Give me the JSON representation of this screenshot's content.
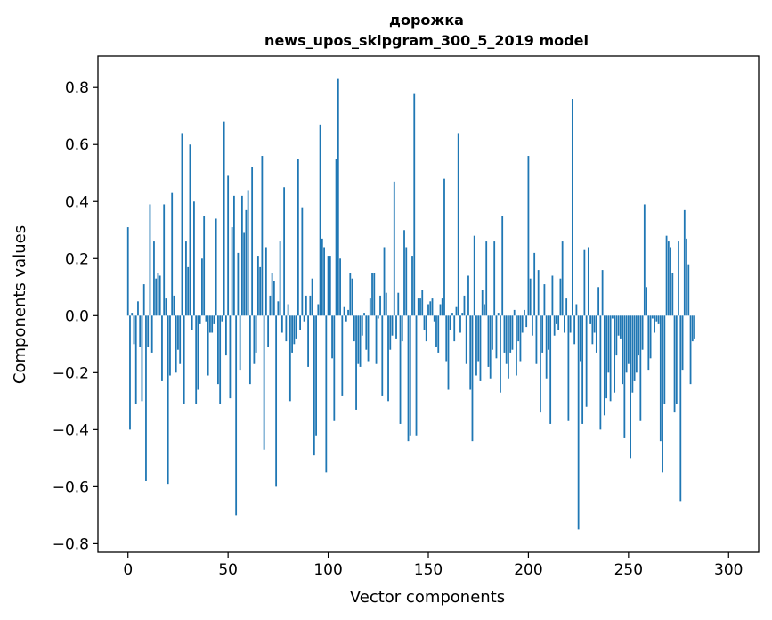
{
  "chart_data": {
    "type": "bar",
    "title": "дорожка",
    "subtitle": "news_upos_skipgram_300_5_2019 model",
    "xlabel": "Vector components",
    "ylabel": "Components values",
    "xlim": [
      -15,
      315
    ],
    "ylim": [
      -0.83,
      0.91
    ],
    "xticks": [
      0,
      50,
      100,
      150,
      200,
      250,
      300
    ],
    "xtick_labels": [
      "0",
      "50",
      "100",
      "150",
      "200",
      "250",
      "300"
    ],
    "yticks": [
      -0.8,
      -0.6,
      -0.4,
      -0.2,
      0.0,
      0.2,
      0.4,
      0.6,
      0.8
    ],
    "ytick_labels": [
      "−0.8",
      "−0.6",
      "−0.4",
      "−0.2",
      "0.0",
      "0.2",
      "0.4",
      "0.6",
      "0.8"
    ],
    "grid": false,
    "bar_color": "#1f77b4",
    "x_start": 0,
    "values": [
      0.31,
      -0.4,
      0.01,
      -0.1,
      -0.31,
      0.05,
      -0.11,
      -0.3,
      0.11,
      -0.58,
      -0.11,
      0.39,
      -0.13,
      0.26,
      0.13,
      0.15,
      0.14,
      -0.23,
      0.39,
      0.06,
      -0.59,
      -0.21,
      0.43,
      0.07,
      -0.2,
      -0.12,
      -0.17,
      0.64,
      -0.31,
      0.26,
      0.17,
      0.6,
      -0.05,
      0.4,
      -0.31,
      -0.26,
      -0.03,
      0.2,
      0.35,
      -0.02,
      -0.21,
      -0.06,
      -0.06,
      -0.03,
      0.34,
      -0.24,
      -0.31,
      -0.02,
      0.68,
      -0.14,
      0.49,
      -0.29,
      0.31,
      0.42,
      -0.7,
      0.22,
      -0.19,
      0.42,
      0.29,
      0.37,
      0.44,
      -0.24,
      0.52,
      -0.17,
      -0.13,
      0.21,
      0.17,
      0.56,
      -0.47,
      0.24,
      -0.11,
      0.07,
      0.15,
      0.12,
      -0.6,
      0.05,
      0.26,
      -0.06,
      0.45,
      -0.09,
      0.04,
      -0.3,
      -0.13,
      -0.1,
      -0.08,
      0.55,
      -0.05,
      0.38,
      -0.02,
      0.07,
      -0.18,
      0.07,
      0.13,
      -0.49,
      -0.42,
      0.04,
      0.67,
      0.27,
      0.24,
      -0.55,
      0.21,
      0.21,
      -0.15,
      -0.37,
      0.55,
      0.83,
      0.2,
      -0.28,
      0.03,
      -0.02,
      0.02,
      0.15,
      0.13,
      -0.09,
      -0.33,
      -0.17,
      -0.18,
      -0.07,
      0.01,
      -0.12,
      -0.16,
      0.06,
      0.15,
      0.15,
      -0.17,
      -0.01,
      0.07,
      -0.28,
      0.24,
      0.08,
      -0.3,
      -0.12,
      -0.07,
      0.47,
      -0.08,
      0.08,
      -0.38,
      -0.09,
      0.3,
      0.24,
      -0.44,
      -0.42,
      0.21,
      0.78,
      -0.42,
      0.06,
      0.06,
      0.09,
      -0.05,
      -0.09,
      0.04,
      0.05,
      0.06,
      -0.02,
      -0.11,
      -0.13,
      0.04,
      0.06,
      0.48,
      -0.16,
      -0.26,
      -0.05,
      0.01,
      -0.09,
      0.03,
      0.64,
      -0.06,
      0.01,
      0.07,
      -0.17,
      0.14,
      -0.26,
      -0.44,
      0.28,
      -0.21,
      -0.16,
      -0.23,
      0.09,
      0.04,
      0.26,
      -0.18,
      -0.22,
      -0.12,
      0.26,
      -0.15,
      0.01,
      -0.27,
      0.35,
      -0.13,
      -0.17,
      -0.22,
      -0.13,
      -0.12,
      0.02,
      -0.21,
      -0.09,
      -0.16,
      -0.06,
      0.02,
      -0.04,
      0.56,
      0.13,
      -0.07,
      0.22,
      -0.17,
      0.16,
      -0.34,
      -0.13,
      0.11,
      -0.22,
      -0.12,
      -0.38,
      0.14,
      -0.07,
      -0.03,
      -0.05,
      0.13,
      0.26,
      -0.06,
      0.06,
      -0.37,
      -0.06,
      0.76,
      -0.1,
      0.04,
      -0.75,
      -0.16,
      -0.38,
      0.23,
      -0.32,
      0.24,
      -0.03,
      -0.1,
      -0.06,
      -0.13,
      0.1,
      -0.4,
      0.16,
      -0.35,
      -0.29,
      -0.2,
      -0.3,
      -0.01,
      -0.27,
      -0.14,
      -0.07,
      -0.08,
      -0.24,
      -0.43,
      -0.2,
      -0.17,
      -0.5,
      -0.27,
      -0.23,
      -0.2,
      -0.14,
      -0.37,
      -0.12,
      0.39,
      0.1,
      -0.19,
      -0.15,
      -0.01,
      -0.06,
      -0.02,
      -0.03,
      -0.44,
      -0.55,
      -0.31,
      0.28,
      0.26,
      0.24,
      0.15,
      -0.34,
      -0.31,
      0.26,
      -0.65,
      -0.19,
      0.37,
      0.27,
      0.18,
      -0.24,
      -0.09,
      -0.08
    ]
  }
}
